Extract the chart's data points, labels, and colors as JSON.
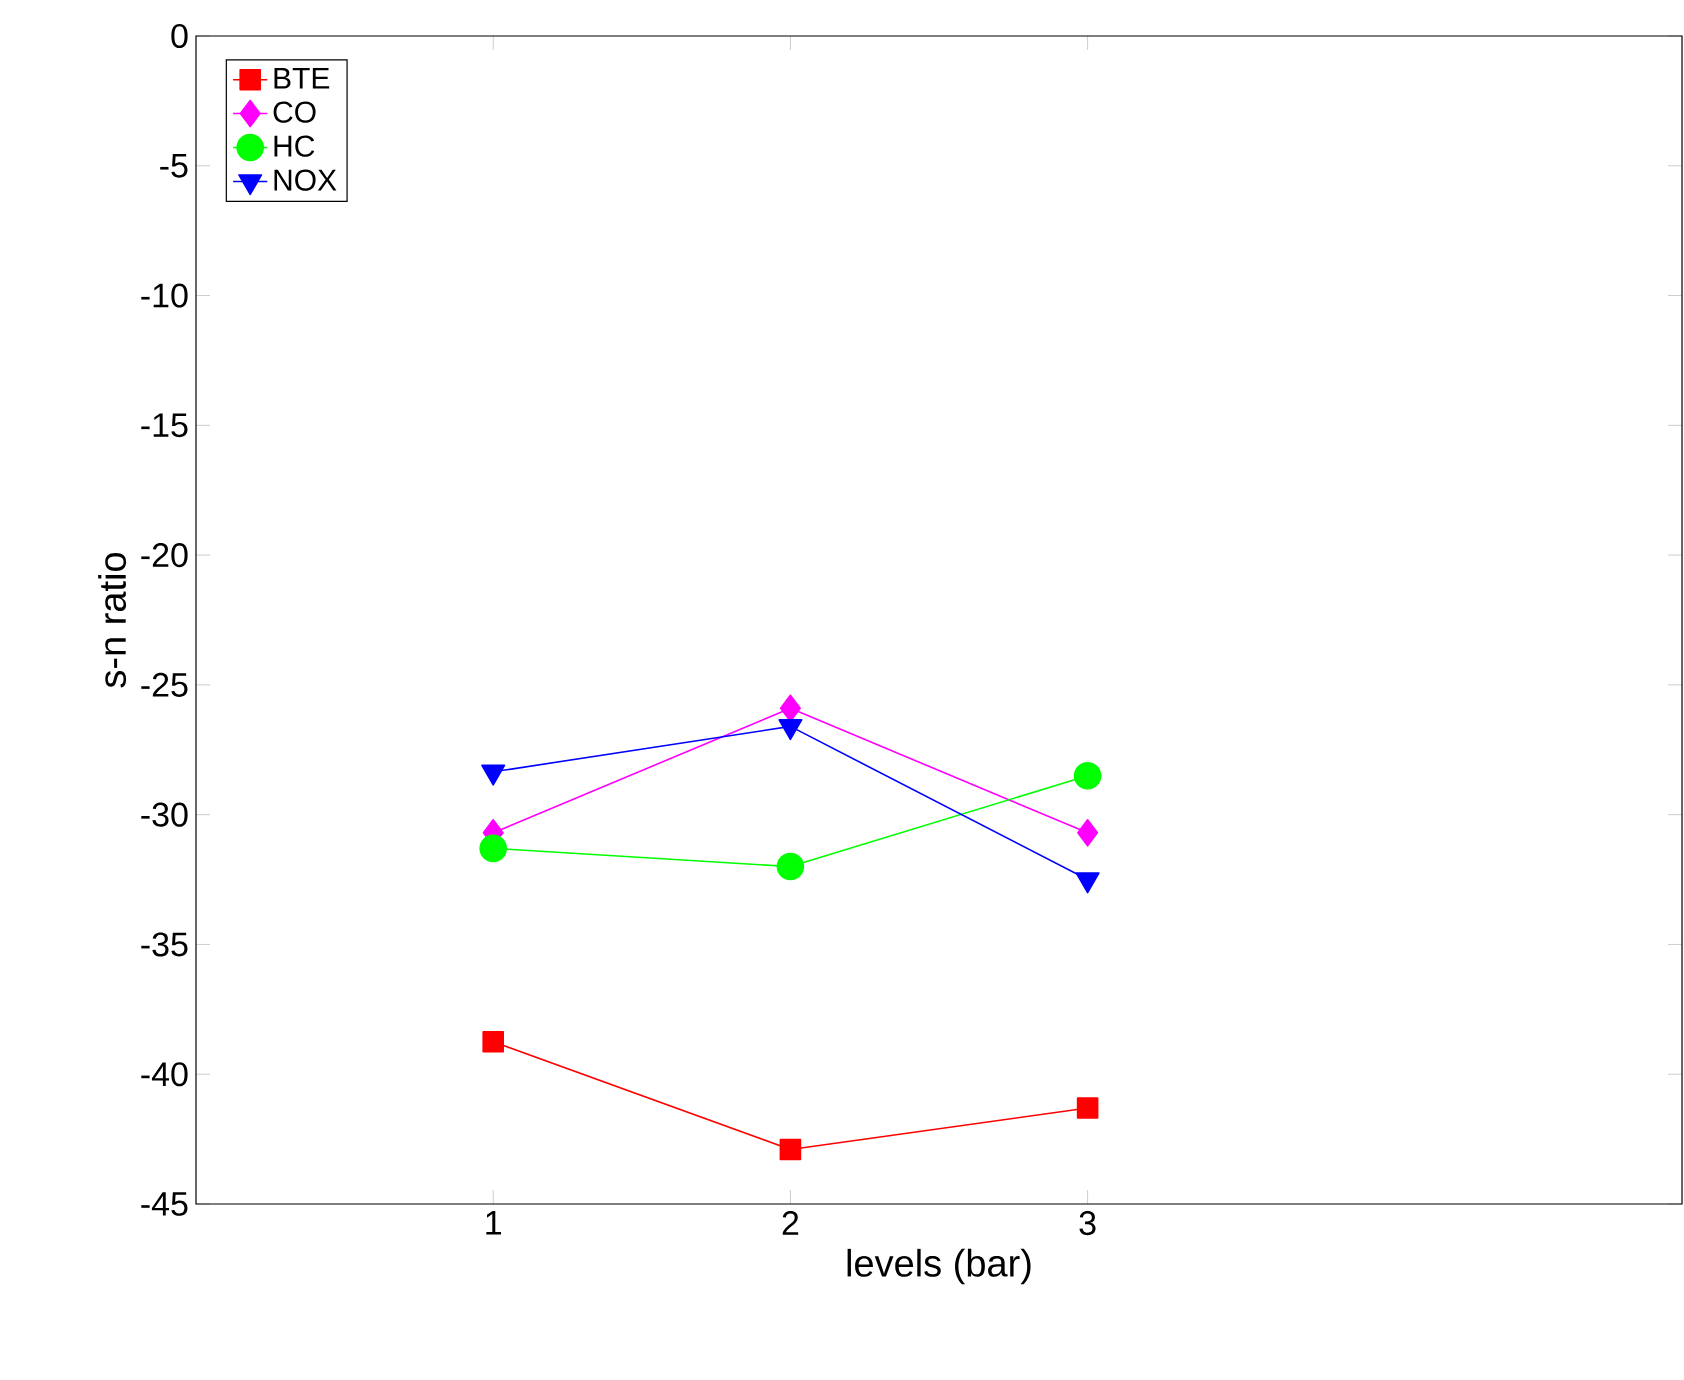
{
  "chart_data": {
    "type": "line",
    "xlabel": "levels (bar)",
    "ylabel": "s-n ratio",
    "x": [
      1,
      2,
      3
    ],
    "xlim": [
      0,
      5
    ],
    "xticks": [
      1,
      2,
      3
    ],
    "ylim": [
      -45,
      0
    ],
    "yticks": [
      -45,
      -40,
      -35,
      -30,
      -25,
      -20,
      -15,
      -10,
      -5,
      0
    ],
    "grid": false,
    "legend": "top left",
    "line_style": "solid",
    "series": [
      {
        "name": "BTE",
        "color": "#ff0000",
        "marker": "square",
        "values": [
          -38.75,
          -42.9,
          -41.3
        ]
      },
      {
        "name": "CO",
        "color": "#ff00ff",
        "marker": "diamond",
        "values": [
          -30.7,
          -25.9,
          -30.7
        ]
      },
      {
        "name": "HC",
        "color": "#00ff00",
        "marker": "circle",
        "values": [
          -31.3,
          -32.0,
          -28.5
        ]
      },
      {
        "name": "NOX",
        "color": "#0000ff",
        "marker": "triangle",
        "values": [
          -28.35,
          -26.6,
          -32.5
        ]
      }
    ]
  }
}
